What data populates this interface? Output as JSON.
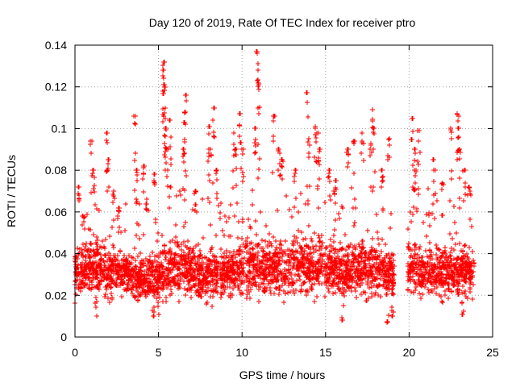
{
  "chart_data": {
    "type": "scatter",
    "title": "Day 120 of 2019, Rate Of TEC Index for receiver ptro",
    "xlabel": "GPS time / hours",
    "ylabel": "ROTI / TECUs",
    "xlim": [
      0,
      25
    ],
    "ylim": [
      0,
      0.14
    ],
    "x_ticks": [
      0,
      5,
      10,
      15,
      20,
      25
    ],
    "x_tick_labels": [
      "0",
      "5",
      "10",
      "15",
      "20",
      "25"
    ],
    "y_ticks": [
      0,
      0.02,
      0.04,
      0.06,
      0.08,
      0.1,
      0.12,
      0.14
    ],
    "y_tick_labels": [
      "0",
      "0.02",
      "0.04",
      "0.06",
      "0.08",
      "0.1",
      "0.12",
      "0.14"
    ],
    "grid": true,
    "marker": "+",
    "marker_color": "#ff0000",
    "data_gap_hours": [
      19.1,
      19.9
    ],
    "band_profile": {
      "hours": [
        0,
        1,
        2,
        3,
        4,
        5,
        6,
        7,
        8,
        9,
        10,
        11,
        12,
        13,
        14,
        15,
        16,
        17,
        18,
        19,
        20,
        21,
        22,
        23,
        24
      ],
      "center_roti": [
        0.03,
        0.033,
        0.031,
        0.03,
        0.028,
        0.03,
        0.033,
        0.031,
        0.03,
        0.031,
        0.033,
        0.034,
        0.033,
        0.033,
        0.034,
        0.034,
        0.032,
        0.033,
        0.033,
        0.03,
        0.034,
        0.032,
        0.031,
        0.031,
        0.03
      ],
      "spread_roti": [
        0.012,
        0.014,
        0.013,
        0.011,
        0.011,
        0.013,
        0.015,
        0.013,
        0.013,
        0.012,
        0.014,
        0.015,
        0.014,
        0.015,
        0.016,
        0.014,
        0.013,
        0.016,
        0.015,
        0.012,
        0.014,
        0.013,
        0.013,
        0.013,
        0.011
      ]
    },
    "spikes": [
      {
        "x": 0.2,
        "y": 0.072
      },
      {
        "x": 0.5,
        "y": 0.058
      },
      {
        "x": 1.0,
        "y": 0.094
      },
      {
        "x": 1.1,
        "y": 0.08
      },
      {
        "x": 1.9,
        "y": 0.098
      },
      {
        "x": 2.0,
        "y": 0.085
      },
      {
        "x": 2.3,
        "y": 0.07
      },
      {
        "x": 2.6,
        "y": 0.062
      },
      {
        "x": 3.6,
        "y": 0.106
      },
      {
        "x": 3.7,
        "y": 0.08
      },
      {
        "x": 4.1,
        "y": 0.082
      },
      {
        "x": 4.3,
        "y": 0.066
      },
      {
        "x": 4.8,
        "y": 0.078
      },
      {
        "x": 5.3,
        "y": 0.132
      },
      {
        "x": 5.3,
        "y": 0.128
      },
      {
        "x": 5.35,
        "y": 0.12
      },
      {
        "x": 5.4,
        "y": 0.11
      },
      {
        "x": 5.4,
        "y": 0.1
      },
      {
        "x": 5.5,
        "y": 0.09
      },
      {
        "x": 5.7,
        "y": 0.104
      },
      {
        "x": 6.6,
        "y": 0.116
      },
      {
        "x": 6.6,
        "y": 0.108
      },
      {
        "x": 6.5,
        "y": 0.09
      },
      {
        "x": 7.2,
        "y": 0.07
      },
      {
        "x": 8.0,
        "y": 0.101
      },
      {
        "x": 8.3,
        "y": 0.11
      },
      {
        "x": 8.1,
        "y": 0.09
      },
      {
        "x": 8.5,
        "y": 0.08
      },
      {
        "x": 9.5,
        "y": 0.098
      },
      {
        "x": 9.6,
        "y": 0.09
      },
      {
        "x": 9.9,
        "y": 0.107
      },
      {
        "x": 10.0,
        "y": 0.09
      },
      {
        "x": 10.9,
        "y": 0.137
      },
      {
        "x": 10.95,
        "y": 0.128
      },
      {
        "x": 11.0,
        "y": 0.122
      },
      {
        "x": 10.8,
        "y": 0.1
      },
      {
        "x": 11.9,
        "y": 0.106
      },
      {
        "x": 12.2,
        "y": 0.09
      },
      {
        "x": 12.4,
        "y": 0.085
      },
      {
        "x": 13.2,
        "y": 0.08
      },
      {
        "x": 13.9,
        "y": 0.117
      },
      {
        "x": 14.0,
        "y": 0.095
      },
      {
        "x": 14.4,
        "y": 0.101
      },
      {
        "x": 14.5,
        "y": 0.098
      },
      {
        "x": 14.6,
        "y": 0.09
      },
      {
        "x": 15.2,
        "y": 0.08
      },
      {
        "x": 15.6,
        "y": 0.075
      },
      {
        "x": 16.3,
        "y": 0.09
      },
      {
        "x": 16.7,
        "y": 0.094
      },
      {
        "x": 17.2,
        "y": 0.098
      },
      {
        "x": 17.7,
        "y": 0.093
      },
      {
        "x": 17.8,
        "y": 0.109
      },
      {
        "x": 17.9,
        "y": 0.1
      },
      {
        "x": 18.4,
        "y": 0.08
      },
      {
        "x": 18.8,
        "y": 0.095
      },
      {
        "x": 20.2,
        "y": 0.105
      },
      {
        "x": 20.3,
        "y": 0.09
      },
      {
        "x": 20.6,
        "y": 0.099
      },
      {
        "x": 20.4,
        "y": 0.08
      },
      {
        "x": 21.5,
        "y": 0.085
      },
      {
        "x": 22.0,
        "y": 0.074
      },
      {
        "x": 22.5,
        "y": 0.1
      },
      {
        "x": 22.9,
        "y": 0.107
      },
      {
        "x": 22.95,
        "y": 0.1
      },
      {
        "x": 23.0,
        "y": 0.09
      },
      {
        "x": 23.3,
        "y": 0.08
      },
      {
        "x": 23.6,
        "y": 0.072
      },
      {
        "x": 1.3,
        "y": 0.01
      },
      {
        "x": 4.7,
        "y": 0.01
      },
      {
        "x": 5.0,
        "y": 0.011
      },
      {
        "x": 16.0,
        "y": 0.008
      },
      {
        "x": 18.7,
        "y": 0.007
      },
      {
        "x": 19.0,
        "y": 0.01
      },
      {
        "x": 23.2,
        "y": 0.011
      }
    ]
  }
}
